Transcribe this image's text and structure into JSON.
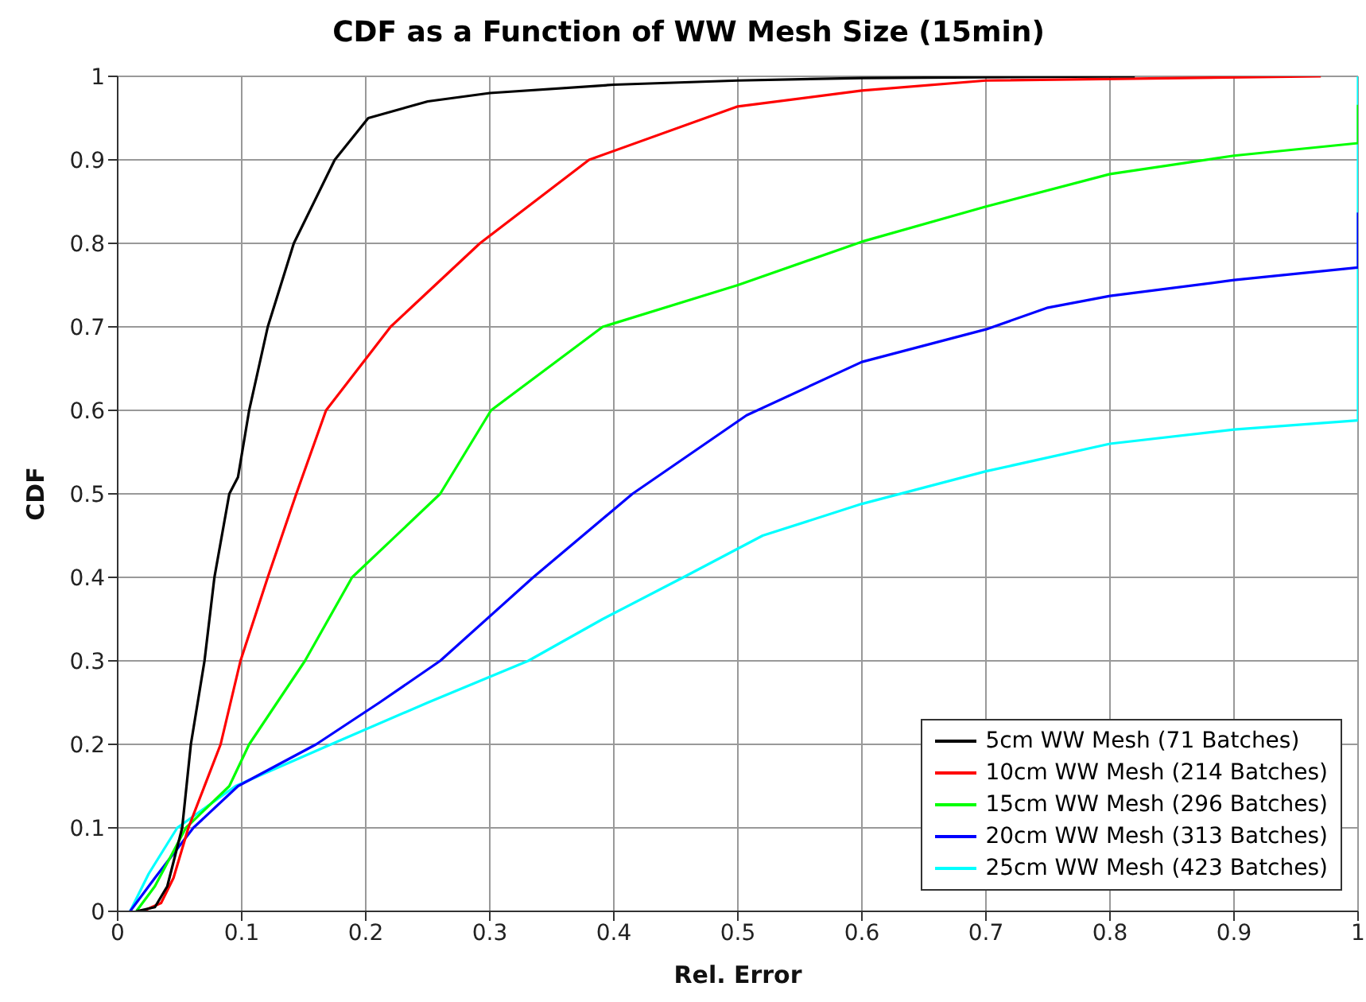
{
  "chart_data": {
    "type": "line",
    "title": "CDF as a Function of WW Mesh Size (15min)",
    "xlabel": "Rel. Error",
    "ylabel": "CDF",
    "xlim": [
      0,
      1
    ],
    "ylim": [
      0,
      1
    ],
    "xticks": [
      0,
      0.1,
      0.2,
      0.3,
      0.4,
      0.5,
      0.6,
      0.7,
      0.8,
      0.9,
      1
    ],
    "yticks": [
      0,
      0.1,
      0.2,
      0.3,
      0.4,
      0.5,
      0.6,
      0.7,
      0.8,
      0.9,
      1
    ],
    "grid": true,
    "legend": "bottom right",
    "series": [
      {
        "name": "5cm WW Mesh (71 Batches)",
        "color": "#000000",
        "x": [
          0.015,
          0.03,
          0.04,
          0.052,
          0.059,
          0.07,
          0.078,
          0.09,
          0.097,
          0.106,
          0.121,
          0.142,
          0.175,
          0.202,
          0.25,
          0.3,
          0.4,
          0.5,
          0.6,
          0.82
        ],
        "values": [
          0,
          0.005,
          0.03,
          0.1,
          0.2,
          0.3,
          0.4,
          0.5,
          0.52,
          0.6,
          0.7,
          0.8,
          0.9,
          0.95,
          0.97,
          0.98,
          0.99,
          0.995,
          0.998,
          1
        ]
      },
      {
        "name": "10cm WW Mesh (214 Batches)",
        "color": "#ff0000",
        "x": [
          0.02,
          0.035,
          0.045,
          0.057,
          0.083,
          0.099,
          0.121,
          0.144,
          0.168,
          0.22,
          0.292,
          0.38,
          0.5,
          0.6,
          0.7,
          0.97
        ],
        "values": [
          0,
          0.01,
          0.04,
          0.1,
          0.2,
          0.3,
          0.4,
          0.5,
          0.6,
          0.7,
          0.8,
          0.9,
          0.964,
          0.983,
          0.995,
          1
        ]
      },
      {
        "name": "15cm WW Mesh (296 Batches)",
        "color": "#00ff00",
        "x": [
          0.015,
          0.03,
          0.055,
          0.09,
          0.106,
          0.151,
          0.189,
          0.26,
          0.301,
          0.391,
          0.5,
          0.6,
          0.7,
          0.8,
          0.9,
          1,
          1
        ],
        "values": [
          0,
          0.03,
          0.1,
          0.15,
          0.2,
          0.3,
          0.4,
          0.5,
          0.6,
          0.7,
          0.75,
          0.802,
          0.844,
          0.883,
          0.905,
          0.92,
          0.966
        ]
      },
      {
        "name": "20cm WW Mesh (313 Batches)",
        "color": "#0000ff",
        "x": [
          0.01,
          0.03,
          0.061,
          0.097,
          0.16,
          0.211,
          0.26,
          0.335,
          0.415,
          0.507,
          0.6,
          0.7,
          0.75,
          0.8,
          0.9,
          1,
          1
        ],
        "values": [
          0,
          0.04,
          0.1,
          0.15,
          0.2,
          0.25,
          0.3,
          0.4,
          0.5,
          0.594,
          0.658,
          0.697,
          0.723,
          0.737,
          0.756,
          0.771,
          0.837
        ]
      },
      {
        "name": "25cm WW Mesh (423 Batches)",
        "color": "#00ffff",
        "x": [
          0.01,
          0.025,
          0.048,
          0.095,
          0.172,
          0.25,
          0.331,
          0.391,
          0.456,
          0.52,
          0.6,
          0.7,
          0.8,
          0.9,
          1,
          1,
          1
        ],
        "values": [
          0,
          0.045,
          0.1,
          0.15,
          0.2,
          0.25,
          0.3,
          0.35,
          0.4,
          0.45,
          0.488,
          0.527,
          0.56,
          0.577,
          0.588,
          0.63,
          1
        ]
      }
    ]
  }
}
